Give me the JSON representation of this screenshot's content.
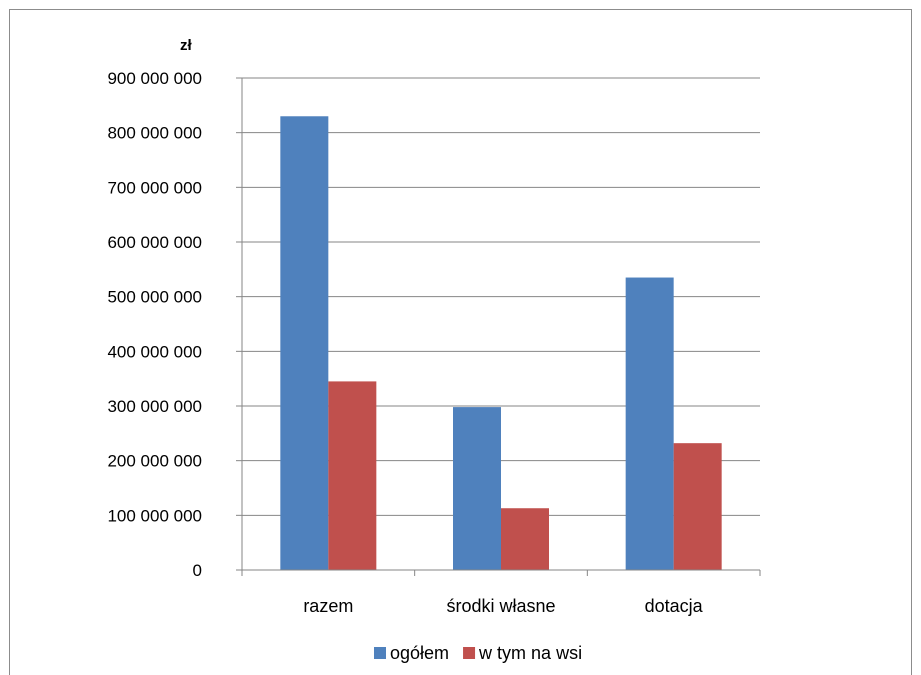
{
  "chart_data": {
    "type": "bar",
    "unit_label": "zł",
    "categories": [
      "razem",
      "środki własne",
      "dotacja"
    ],
    "series": [
      {
        "name": "ogółem",
        "color": "#4f81bd",
        "values": [
          830000000,
          298000000,
          535000000
        ]
      },
      {
        "name": "w tym na wsi",
        "color": "#c0504d",
        "values": [
          345000000,
          113000000,
          232000000
        ]
      }
    ],
    "ylim": [
      0,
      900000000
    ],
    "yticks": [
      0,
      100000000,
      200000000,
      300000000,
      400000000,
      500000000,
      600000000,
      700000000,
      800000000,
      900000000
    ],
    "ytick_labels": [
      "0",
      "100 000 000",
      "200 000 000",
      "300 000 000",
      "400 000 000",
      "500 000 000",
      "600 000 000",
      "700 000 000",
      "800 000 000",
      "900 000 000"
    ],
    "grid": true,
    "legend_position": "bottom"
  }
}
